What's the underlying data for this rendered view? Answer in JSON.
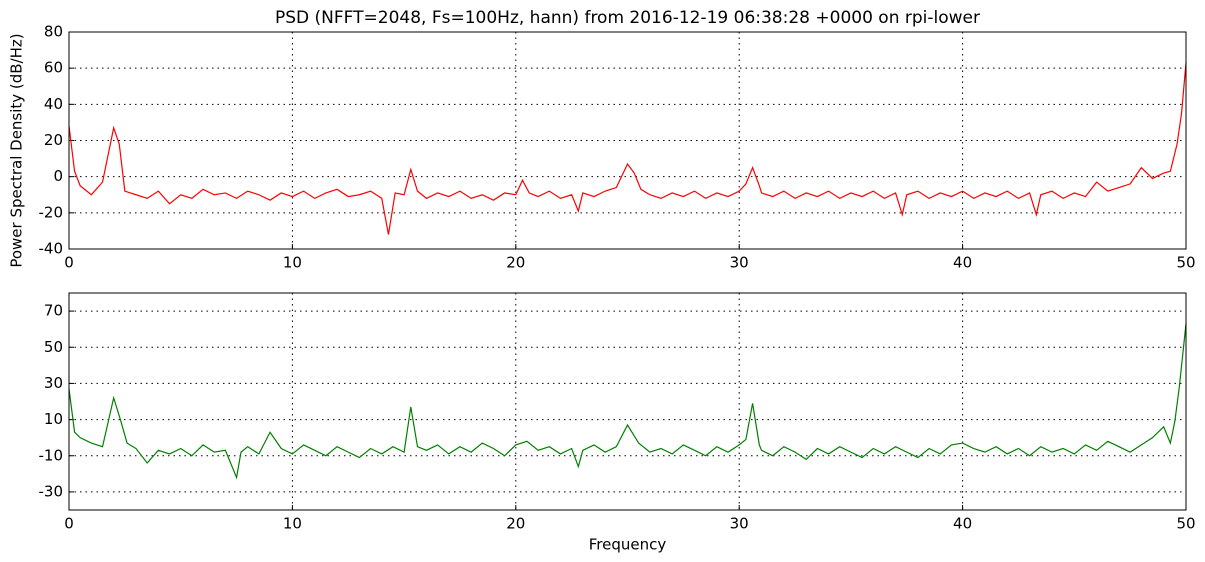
{
  "chart_data": [
    {
      "type": "line",
      "title": "PSD (NFFT=2048, Fs=100Hz, hann) from 2016-12-19 06:38:28 +0000 on rpi-lower",
      "y_label": "Power Spectral Density (dB/Hz)",
      "grid": true,
      "xlim": [
        0,
        50
      ],
      "xticks": [
        0,
        10,
        20,
        30,
        40,
        50
      ],
      "ylim": [
        -40,
        80
      ],
      "yticks": [
        -40,
        -20,
        0,
        20,
        40,
        60,
        80
      ],
      "series": [
        {
          "color": "#ff0000",
          "x": [
            0,
            0.25,
            0.5,
            1,
            1.5,
            2,
            2.25,
            2.5,
            3,
            3.5,
            4,
            4.5,
            5,
            5.5,
            6,
            6.5,
            7,
            7.5,
            8,
            8.5,
            9,
            9.5,
            10,
            10.5,
            11,
            11.5,
            12,
            12.5,
            13,
            13.5,
            14,
            14.3,
            14.6,
            15,
            15.3,
            15.6,
            16,
            16.5,
            17,
            17.5,
            18,
            18.5,
            19,
            19.5,
            20,
            20.3,
            20.6,
            21,
            21.5,
            22,
            22.5,
            22.8,
            23,
            23.5,
            24,
            24.5,
            25,
            25.3,
            25.6,
            26,
            26.5,
            27,
            27.5,
            28,
            28.5,
            29,
            29.5,
            30,
            30.3,
            30.6,
            30.9,
            31,
            31.5,
            32,
            32.5,
            33,
            33.5,
            34,
            34.5,
            35,
            35.5,
            36,
            36.5,
            37,
            37.3,
            37.5,
            38,
            38.5,
            39,
            39.5,
            40,
            40.5,
            41,
            41.5,
            42,
            42.5,
            43,
            43.3,
            43.5,
            44,
            44.5,
            45,
            45.5,
            46,
            46.5,
            47,
            47.5,
            48,
            48.5,
            49,
            49.3,
            49.6,
            49.8,
            50
          ],
          "values": [
            28,
            3,
            -5,
            -10,
            -3,
            27,
            18,
            -8,
            -10,
            -12,
            -8,
            -15,
            -10,
            -12,
            -7,
            -10,
            -9,
            -12,
            -8,
            -10,
            -13,
            -9,
            -11,
            -8,
            -12,
            -9,
            -7,
            -11,
            -10,
            -8,
            -12,
            -32,
            -9,
            -10,
            4,
            -8,
            -12,
            -9,
            -11,
            -8,
            -12,
            -10,
            -13,
            -9,
            -10,
            -2,
            -9,
            -11,
            -8,
            -12,
            -10,
            -19,
            -9,
            -11,
            -8,
            -6,
            7,
            2,
            -7,
            -10,
            -12,
            -9,
            -11,
            -8,
            -12,
            -9,
            -11,
            -8,
            -4,
            5,
            -5,
            -9,
            -11,
            -8,
            -12,
            -9,
            -11,
            -8,
            -12,
            -9,
            -11,
            -8,
            -12,
            -9,
            -21,
            -10,
            -8,
            -12,
            -9,
            -11,
            -8,
            -12,
            -9,
            -11,
            -8,
            -12,
            -9,
            -21,
            -10,
            -8,
            -12,
            -9,
            -11,
            -3,
            -8,
            -6,
            -4,
            5,
            -1,
            2,
            3,
            18,
            35,
            63
          ]
        }
      ]
    },
    {
      "type": "line",
      "x_label": "Frequency",
      "grid": true,
      "xlim": [
        0,
        50
      ],
      "xticks": [
        0,
        10,
        20,
        30,
        40,
        50
      ],
      "ylim": [
        -40,
        80
      ],
      "yticks": [
        -30,
        -10,
        10,
        30,
        50,
        70
      ],
      "series": [
        {
          "color": "#008000",
          "x": [
            0,
            0.25,
            0.5,
            1,
            1.5,
            2,
            2.3,
            2.6,
            3,
            3.5,
            4,
            4.5,
            5,
            5.5,
            6,
            6.5,
            7,
            7.5,
            7.7,
            8,
            8.5,
            9,
            9.5,
            10,
            10.5,
            11,
            11.5,
            12,
            12.5,
            13,
            13.5,
            14,
            14.5,
            15,
            15.3,
            15.6,
            16,
            16.5,
            17,
            17.5,
            18,
            18.5,
            19,
            19.5,
            20,
            20.5,
            21,
            21.5,
            22,
            22.5,
            22.8,
            23,
            23.5,
            24,
            24.5,
            25,
            25.5,
            26,
            26.5,
            27,
            27.5,
            28,
            28.5,
            29,
            29.5,
            30,
            30.3,
            30.6,
            30.9,
            31,
            31.5,
            32,
            32.5,
            33,
            33.5,
            34,
            34.5,
            35,
            35.5,
            36,
            36.5,
            37,
            37.5,
            38,
            38.5,
            39,
            39.5,
            40,
            40.5,
            41,
            41.5,
            42,
            42.5,
            43,
            43.5,
            44,
            44.5,
            45,
            45.5,
            46,
            46.5,
            47,
            47.5,
            48,
            48.5,
            49,
            49.3,
            49.5,
            49.7,
            50
          ],
          "values": [
            27,
            3,
            0,
            -3,
            -5,
            22,
            10,
            -3,
            -6,
            -14,
            -7,
            -9,
            -6,
            -10,
            -4,
            -8,
            -7,
            -22,
            -8,
            -5,
            -9,
            3,
            -6,
            -9,
            -4,
            -7,
            -10,
            -5,
            -8,
            -11,
            -6,
            -9,
            -5,
            -8,
            17,
            -5,
            -7,
            -4,
            -9,
            -5,
            -8,
            -3,
            -6,
            -10,
            -4,
            -2,
            -7,
            -5,
            -9,
            -6,
            -16,
            -7,
            -4,
            -8,
            -5,
            7,
            -3,
            -8,
            -6,
            -9,
            -4,
            -7,
            -10,
            -5,
            -8,
            -4,
            -1,
            19,
            -4,
            -7,
            -10,
            -5,
            -8,
            -12,
            -6,
            -9,
            -5,
            -8,
            -11,
            -6,
            -9,
            -5,
            -8,
            -11,
            -6,
            -9,
            -4,
            -3,
            -6,
            -8,
            -5,
            -9,
            -6,
            -10,
            -5,
            -8,
            -6,
            -9,
            -4,
            -7,
            -2,
            -5,
            -8,
            -4,
            0,
            6,
            -3,
            9,
            28,
            63
          ]
        }
      ]
    }
  ]
}
